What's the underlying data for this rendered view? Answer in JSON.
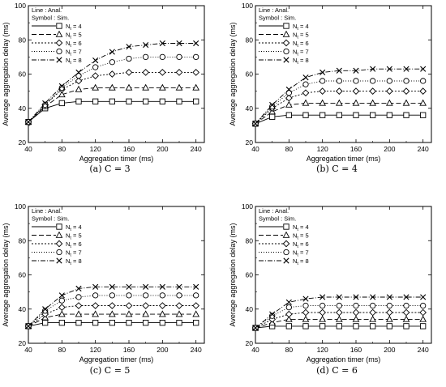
{
  "chart_data": [
    {
      "type": "line",
      "caption": "(a) C = 3",
      "xlabel": "Aggregation timer (ms)",
      "ylabel": "Average aggregation delay (ms)",
      "xlim": [
        40,
        250
      ],
      "ylim": [
        20,
        100
      ],
      "xticks": [
        40,
        80,
        120,
        160,
        200,
        240
      ],
      "yticks": [
        20,
        40,
        60,
        80,
        100
      ],
      "legend_header": [
        "Line : Anal.",
        "Symbol : Sim."
      ],
      "legend_placement": "top-left",
      "x": [
        40,
        60,
        80,
        100,
        120,
        140,
        160,
        180,
        200,
        220,
        240
      ],
      "series": [
        {
          "name": "N",
          "sub": "t",
          "suffix": " = 4",
          "dash": "",
          "marker": "square",
          "values": [
            32,
            40,
            43,
            44,
            44,
            44,
            44,
            44,
            44,
            44,
            44
          ]
        },
        {
          "name": "N",
          "sub": "t",
          "suffix": " = 5",
          "dash": "6,3",
          "marker": "triangle",
          "values": [
            32,
            41,
            48,
            51,
            52,
            52,
            52,
            52,
            52,
            52,
            52
          ]
        },
        {
          "name": "N",
          "sub": "t",
          "suffix": " = 6",
          "dash": "2,2",
          "marker": "diamond",
          "values": [
            32,
            42,
            51,
            56,
            59,
            60,
            61,
            61,
            61,
            61,
            61
          ]
        },
        {
          "name": "N",
          "sub": "t",
          "suffix": " = 7",
          "dash": "1,2",
          "marker": "circle",
          "values": [
            32,
            42,
            52,
            59,
            64,
            67,
            69,
            70,
            70,
            70,
            70
          ]
        },
        {
          "name": "N",
          "sub": "t",
          "suffix": " = 8",
          "dash": "6,2,1,2",
          "marker": "x",
          "values": [
            32,
            43,
            53,
            61,
            68,
            73,
            76,
            77,
            78,
            78,
            78
          ]
        }
      ]
    },
    {
      "type": "line",
      "caption": "(b) C = 4",
      "xlabel": "Aggregation timer (ms)",
      "ylabel": "Average aggregation delay (ms)",
      "xlim": [
        40,
        250
      ],
      "ylim": [
        20,
        100
      ],
      "xticks": [
        40,
        80,
        120,
        160,
        200,
        240
      ],
      "yticks": [
        20,
        40,
        60,
        80,
        100
      ],
      "legend_header": [
        "Line : Anal.",
        "Symbol : Sim."
      ],
      "legend_placement": "top-left",
      "x": [
        40,
        60,
        80,
        100,
        120,
        140,
        160,
        180,
        200,
        220,
        240
      ],
      "series": [
        {
          "name": "N",
          "sub": "t",
          "suffix": " = 4",
          "dash": "",
          "marker": "square",
          "values": [
            31,
            35,
            36,
            36,
            36,
            36,
            36,
            36,
            36,
            36,
            36
          ]
        },
        {
          "name": "N",
          "sub": "t",
          "suffix": " = 5",
          "dash": "6,3",
          "marker": "triangle",
          "values": [
            31,
            38,
            42,
            43,
            43,
            43,
            43,
            43,
            43,
            43,
            43
          ]
        },
        {
          "name": "N",
          "sub": "t",
          "suffix": " = 6",
          "dash": "2,2",
          "marker": "diamond",
          "values": [
            31,
            40,
            46,
            49,
            50,
            50,
            50,
            50,
            50,
            50,
            50
          ]
        },
        {
          "name": "N",
          "sub": "t",
          "suffix": " = 7",
          "dash": "1,2",
          "marker": "circle",
          "values": [
            31,
            41,
            49,
            54,
            56,
            56,
            56,
            56,
            56,
            56,
            56
          ]
        },
        {
          "name": "N",
          "sub": "t",
          "suffix": " = 8",
          "dash": "6,2,1,2",
          "marker": "x",
          "values": [
            31,
            42,
            51,
            58,
            61,
            62,
            62,
            63,
            63,
            63,
            63
          ]
        }
      ]
    },
    {
      "type": "line",
      "caption": "(c) C = 5",
      "xlabel": "Aggregation timer (ms)",
      "ylabel": "Average aggregation delay (ms)",
      "xlim": [
        40,
        250
      ],
      "ylim": [
        20,
        100
      ],
      "xticks": [
        40,
        80,
        120,
        160,
        200,
        240
      ],
      "yticks": [
        20,
        40,
        60,
        80,
        100
      ],
      "legend_header": [
        "Line : Anal.",
        "Symbol : Sim."
      ],
      "legend_placement": "top-left",
      "x": [
        40,
        60,
        80,
        100,
        120,
        140,
        160,
        180,
        200,
        220,
        240
      ],
      "series": [
        {
          "name": "N",
          "sub": "t",
          "suffix": " = 4",
          "dash": "",
          "marker": "square",
          "values": [
            30,
            32,
            32,
            32,
            32,
            32,
            32,
            32,
            32,
            32,
            32
          ]
        },
        {
          "name": "N",
          "sub": "t",
          "suffix": " = 5",
          "dash": "6,3",
          "marker": "triangle",
          "values": [
            30,
            35,
            37,
            37,
            37,
            37,
            37,
            37,
            37,
            37,
            37
          ]
        },
        {
          "name": "N",
          "sub": "t",
          "suffix": " = 6",
          "dash": "2,2",
          "marker": "diamond",
          "values": [
            30,
            37,
            41,
            42,
            42,
            42,
            42,
            42,
            42,
            42,
            42
          ]
        },
        {
          "name": "N",
          "sub": "t",
          "suffix": " = 7",
          "dash": "1,2",
          "marker": "circle",
          "values": [
            30,
            39,
            45,
            47,
            48,
            48,
            48,
            48,
            48,
            48,
            48
          ]
        },
        {
          "name": "N",
          "sub": "t",
          "suffix": " = 8",
          "dash": "6,2,1,2",
          "marker": "x",
          "values": [
            30,
            40,
            48,
            52,
            53,
            53,
            53,
            53,
            53,
            53,
            53
          ]
        }
      ]
    },
    {
      "type": "line",
      "caption": "(d) C = 6",
      "xlabel": "Aggregation timer (ms)",
      "ylabel": "Average aggregation delay (ms)",
      "xlim": [
        40,
        250
      ],
      "ylim": [
        20,
        100
      ],
      "xticks": [
        40,
        80,
        120,
        160,
        200,
        240
      ],
      "yticks": [
        20,
        40,
        60,
        80,
        100
      ],
      "legend_header": [
        "Line : Anal.",
        "Symbol : Sim."
      ],
      "legend_placement": "top-left",
      "x": [
        40,
        60,
        80,
        100,
        120,
        140,
        160,
        180,
        200,
        220,
        240
      ],
      "series": [
        {
          "name": "N",
          "sub": "t",
          "suffix": " = 4",
          "dash": "",
          "marker": "square",
          "values": [
            29,
            30,
            30,
            30,
            30,
            30,
            30,
            30,
            30,
            30,
            30
          ]
        },
        {
          "name": "N",
          "sub": "t",
          "suffix": " = 5",
          "dash": "6,3",
          "marker": "triangle",
          "values": [
            29,
            32,
            34,
            34,
            34,
            34,
            34,
            34,
            34,
            34,
            34
          ]
        },
        {
          "name": "N",
          "sub": "t",
          "suffix": " = 6",
          "dash": "2,2",
          "marker": "diamond",
          "values": [
            29,
            34,
            37,
            38,
            38,
            38,
            38,
            38,
            38,
            38,
            38
          ]
        },
        {
          "name": "N",
          "sub": "t",
          "suffix": " = 7",
          "dash": "1,2",
          "marker": "circle",
          "values": [
            29,
            36,
            41,
            42,
            42,
            42,
            42,
            42,
            42,
            42,
            42
          ]
        },
        {
          "name": "N",
          "sub": "t",
          "suffix": " = 8",
          "dash": "6,2,1,2",
          "marker": "x",
          "values": [
            29,
            37,
            44,
            46,
            47,
            47,
            47,
            47,
            47,
            47,
            47
          ]
        }
      ]
    }
  ]
}
